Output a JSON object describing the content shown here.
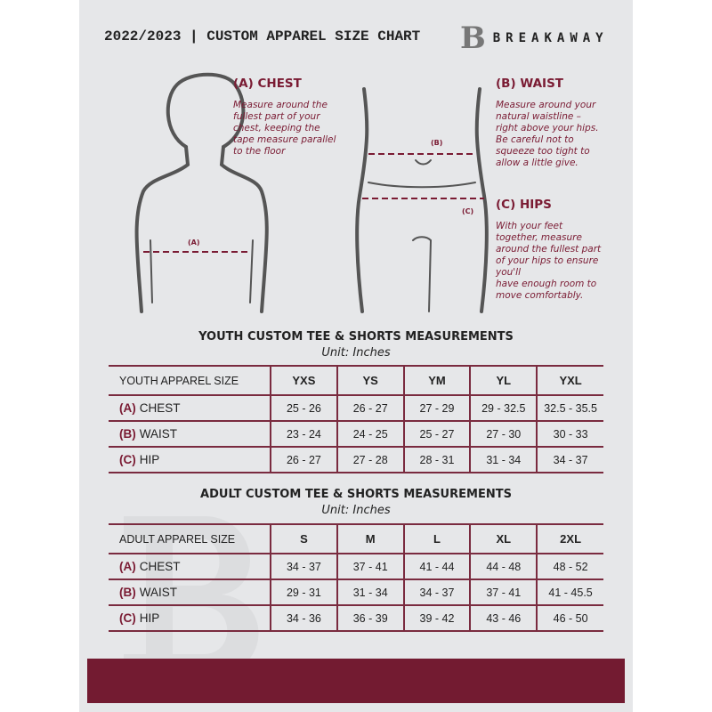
{
  "header": {
    "title": "2022/2023  |  CUSTOM APPAREL SIZE CHART",
    "brand": "BREAKAWAY",
    "logo_letter": "B"
  },
  "measures": {
    "chest": {
      "heading": "(A) CHEST",
      "marker": "(A)",
      "desc": [
        "Measure around the",
        "fullest part of your",
        "chest, keeping the",
        "tape measure parallel",
        "to the floor"
      ]
    },
    "waist": {
      "heading": "(B) WAIST",
      "marker": "(B)",
      "desc": [
        "Measure around your",
        "natural waistline –",
        "right above your hips.",
        "Be careful not to",
        "squeeze too tight to",
        "allow a little give."
      ]
    },
    "hips": {
      "heading": "(C) HIPS",
      "marker": "(C)",
      "desc": [
        "With your feet",
        "together, measure",
        "around the fullest part",
        "of your hips to ensure",
        "you'll",
        "have enough room to",
        "move comfortably."
      ]
    }
  },
  "colors": {
    "accent": "#7a1b33",
    "background": "#e6e7e9",
    "band": "#731b31"
  },
  "youth": {
    "title": "YOUTH CUSTOM TEE & SHORTS MEASUREMENTS",
    "unit": "Unit: Inches",
    "size_label": "YOUTH APPAREL SIZE",
    "sizes": [
      "YXS",
      "YS",
      "YM",
      "YL",
      "YXL"
    ],
    "rows": [
      {
        "letter": "(A)",
        "name": "CHEST",
        "values": [
          "25 - 26",
          "26 - 27",
          "27 - 29",
          "29 - 32.5",
          "32.5 - 35.5"
        ]
      },
      {
        "letter": "(B)",
        "name": "WAIST",
        "values": [
          "23 - 24",
          "24 - 25",
          "25 - 27",
          "27 - 30",
          "30 - 33"
        ]
      },
      {
        "letter": "(C)",
        "name": "HIP",
        "values": [
          "26 - 27",
          "27 - 28",
          "28 - 31",
          "31 - 34",
          "34 - 37"
        ]
      }
    ]
  },
  "adult": {
    "title": "ADULT CUSTOM TEE & SHORTS MEASUREMENTS",
    "unit": "Unit: Inches",
    "size_label": "ADULT APPAREL SIZE",
    "sizes": [
      "S",
      "M",
      "L",
      "XL",
      "2XL"
    ],
    "rows": [
      {
        "letter": "(A)",
        "name": "CHEST",
        "values": [
          "34 - 37",
          "37 - 41",
          "41 - 44",
          "44 - 48",
          "48 - 52"
        ]
      },
      {
        "letter": "(B)",
        "name": "WAIST",
        "values": [
          "29 - 31",
          "31 - 34",
          "34 - 37",
          "37 - 41",
          "41 - 45.5"
        ]
      },
      {
        "letter": "(C)",
        "name": "HIP",
        "values": [
          "34 - 36",
          "36 - 39",
          "39 - 42",
          "43 - 46",
          "46 - 50"
        ]
      }
    ]
  }
}
